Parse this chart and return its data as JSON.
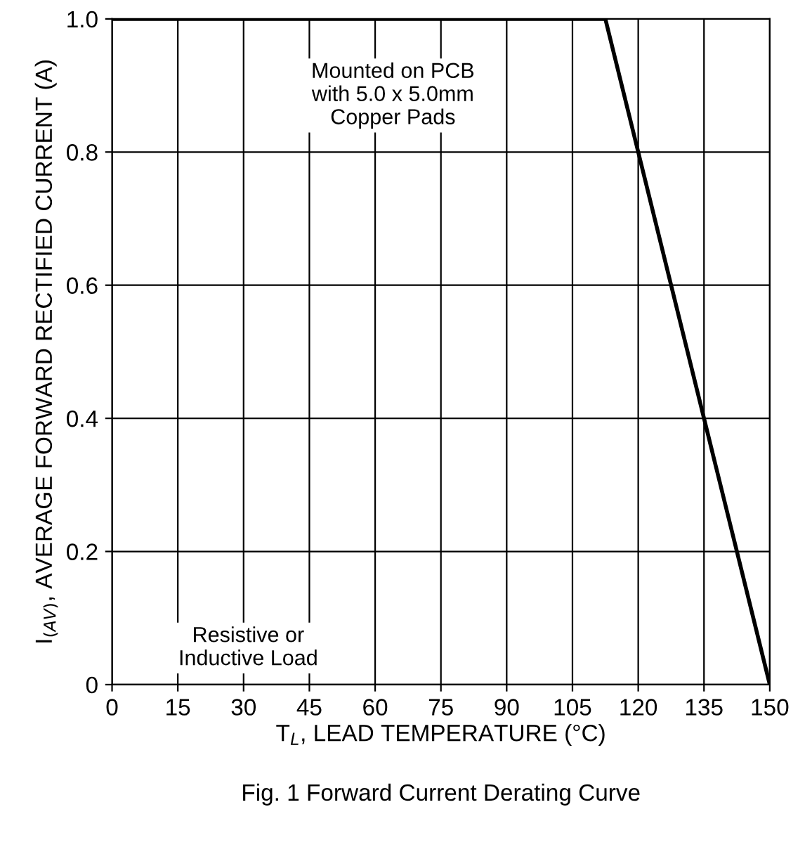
{
  "chart_data": {
    "type": "line",
    "title": "Fig. 1 Forward Current Derating Curve",
    "xlabel": "T$_{L}$, LEAD TEMPERATURE (°C)",
    "ylabel": "I$_{(AV)}$, AVERAGE FORWARD RECTIFIED CURRENT (A)",
    "series": [
      {
        "color": "#000000",
        "x": [
          0,
          112.5,
          150
        ],
        "values": [
          1.0,
          1.0,
          0
        ]
      }
    ],
    "xlim": [
      0,
      150
    ],
    "xticks": [
      0,
      15,
      30,
      45,
      60,
      75,
      90,
      105,
      120,
      135,
      150
    ],
    "ylim": [
      0,
      1.0
    ],
    "yticks": [
      {
        "value": 0,
        "label": "0"
      },
      0.2,
      0.4,
      0.6,
      0.8,
      {
        "value": 1.0,
        "label": "1.0"
      }
    ],
    "grid": true,
    "legend": false,
    "marker": "none",
    "line_style": "solid",
    "annotations": [
      "Mounted on PCB\nwith 5.0 x 5.0mm\nCopper Pads",
      "Resistive or\nInductive Load"
    ]
  }
}
